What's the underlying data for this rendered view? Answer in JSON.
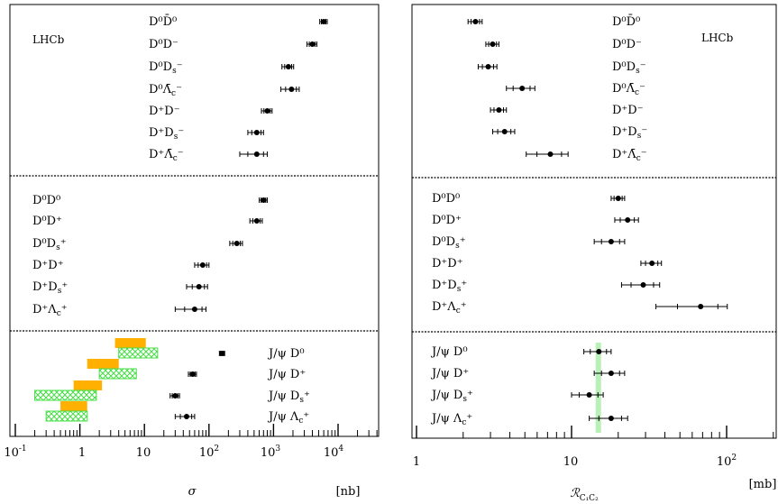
{
  "chart_data": [
    {
      "type": "scatter",
      "label": "LHCb",
      "xlabel": "σ",
      "xunit": "[nb]",
      "xscale": "log",
      "xlim": [
        0.1,
        50000
      ],
      "xticks": [
        "10^-1",
        "1",
        "10",
        "10^2",
        "10^3",
        "10^4"
      ],
      "groups": [
        {
          "rows": [
            {
              "label": "D⁰D̄⁰",
              "value": 6000,
              "err": 800
            },
            {
              "label": "D⁰D⁻",
              "value": 4000,
              "err": 700
            },
            {
              "label": "D⁰D_s⁻",
              "value": 1700,
              "err": 350
            },
            {
              "label": "D⁰Λ̄_c⁻",
              "value": 1900,
              "err": 600
            },
            {
              "label": "D⁺D⁻",
              "value": 800,
              "err": 150
            },
            {
              "label": "D⁺D_s⁻",
              "value": 550,
              "err": 150
            },
            {
              "label": "D⁺Λ̄_c⁻",
              "value": 550,
              "err": 250
            }
          ]
        },
        {
          "rows": [
            {
              "label": "D⁰D⁰",
              "value": 700,
              "err": 100
            },
            {
              "label": "D⁰D⁺",
              "value": 550,
              "err": 120
            },
            {
              "label": "D⁰D_s⁺",
              "value": 270,
              "err": 60
            },
            {
              "label": "D⁺D⁺",
              "value": 80,
              "err": 20
            },
            {
              "label": "D⁺D_s⁺",
              "value": 70,
              "err": 25
            },
            {
              "label": "D⁺Λ_c⁺",
              "value": 60,
              "err": 30
            }
          ]
        },
        {
          "rows": [
            {
              "label": "J/ψ D⁰",
              "value": 160,
              "err": 15
            },
            {
              "label": "J/ψ D⁺",
              "value": 56,
              "err": 8
            },
            {
              "label": "J/ψ D_s⁺",
              "value": 30,
              "err": 5
            },
            {
              "label": "J/ψ Λ_c⁺",
              "value": 45,
              "err": 15
            }
          ],
          "bands": [
            {
              "row": 0,
              "kind": "orange",
              "range": [
                3.5,
                10.5
              ]
            },
            {
              "row": 0,
              "kind": "green",
              "range": [
                4,
                16
              ]
            },
            {
              "row": 1,
              "kind": "orange",
              "range": [
                1.3,
                4
              ]
            },
            {
              "row": 1,
              "kind": "green",
              "range": [
                2,
                7.5
              ]
            },
            {
              "row": 2,
              "kind": "orange",
              "range": [
                0.8,
                2.2
              ]
            },
            {
              "row": 2,
              "kind": "green",
              "range": [
                0.2,
                1.8
              ]
            },
            {
              "row": 3,
              "kind": "orange",
              "range": [
                0.5,
                1.3
              ]
            },
            {
              "row": 3,
              "kind": "green",
              "range": [
                0.3,
                1.3
              ]
            }
          ]
        }
      ]
    },
    {
      "type": "scatter",
      "label": "LHCb",
      "xlabel": "ℛ",
      "xlabel_sub": "C₁C₂",
      "xunit": "[mb]",
      "xscale": "log",
      "xlim": [
        1,
        200
      ],
      "xticks": [
        "1",
        "10",
        "10^2"
      ],
      "groups": [
        {
          "rows": [
            {
              "label": "D⁰D̄⁰",
              "value": 2.4,
              "err": 0.25
            },
            {
              "label": "D⁰D⁻",
              "value": 3.1,
              "err": 0.3
            },
            {
              "label": "D⁰D_s⁻",
              "value": 2.9,
              "err": 0.4
            },
            {
              "label": "D⁰Λ̄_c⁻",
              "value": 4.8,
              "err": 1.0
            },
            {
              "label": "D⁺D⁻",
              "value": 3.4,
              "err": 0.4
            },
            {
              "label": "D⁺D_s⁻",
              "value": 3.7,
              "err": 0.6
            },
            {
              "label": "D⁺Λ̄_c⁻",
              "value": 7.3,
              "err": 2.2
            }
          ]
        },
        {
          "rows": [
            {
              "label": "D⁰D⁰",
              "value": 20,
              "err": 2
            },
            {
              "label": "D⁰D⁺",
              "value": 23,
              "err": 4
            },
            {
              "label": "D⁰D_s⁺",
              "value": 18,
              "err": 4
            },
            {
              "label": "D⁺D⁺",
              "value": 33,
              "err": 5
            },
            {
              "label": "D⁺D_s⁺",
              "value": 29,
              "err": 8
            },
            {
              "label": "D⁺Λ_c⁺",
              "value": 68,
              "err": 33
            }
          ]
        },
        {
          "rows": [
            {
              "label": "J/ψ D⁰",
              "value": 15,
              "err": 3
            },
            {
              "label": "J/ψ D⁺",
              "value": 18,
              "err": 4
            },
            {
              "label": "J/ψ D_s⁺",
              "value": 13,
              "err": 3
            },
            {
              "label": "J/ψ Λ_c⁺",
              "value": 18,
              "err": 5
            }
          ],
          "band": {
            "range": [
              14.3,
              15.5
            ]
          }
        }
      ]
    }
  ],
  "colors": {
    "orange": "#ffb000",
    "green": "#44dd44",
    "green_band": "#b8f0b8"
  }
}
